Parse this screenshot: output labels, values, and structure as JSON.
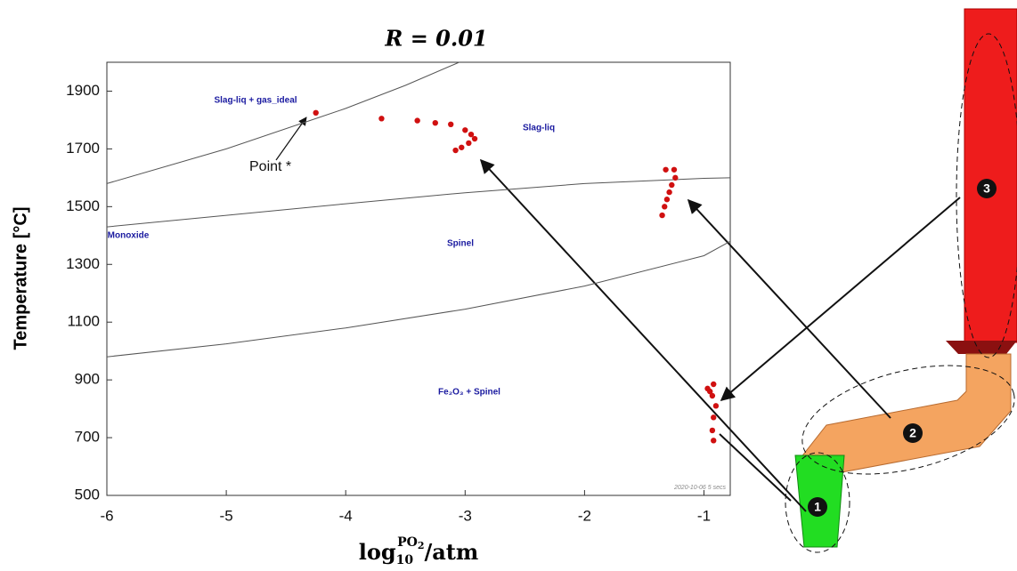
{
  "chart_data": {
    "type": "scatter",
    "title": "R = 0.01",
    "y_label": "Temperature [°C]",
    "x_label": {
      "base": "log",
      "sub": "10",
      "sup": "PO",
      "sup_sub": "2",
      "tail": "/atm"
    },
    "xlim": [
      -6,
      -0.78
    ],
    "ylim": [
      500,
      2000
    ],
    "xticks": [
      -6,
      -5,
      -4,
      -3,
      -2,
      -1
    ],
    "yticks": [
      500,
      700,
      900,
      1100,
      1300,
      1500,
      1700,
      1900
    ],
    "series": [
      {
        "color": "#d01010",
        "x": [
          -4.25,
          -3.7,
          -3.4,
          -3.25,
          -3.12,
          -3.0,
          -2.95,
          -2.92,
          -2.97,
          -3.03,
          -3.08,
          -1.32,
          -1.25,
          -1.24,
          -1.27,
          -1.29,
          -1.31,
          -1.33,
          -1.35,
          -0.97,
          -0.92,
          -0.95,
          -0.93,
          -0.9,
          -0.92,
          -0.93,
          -0.92
        ],
        "y": [
          1825,
          1805,
          1798,
          1790,
          1785,
          1765,
          1750,
          1735,
          1720,
          1705,
          1695,
          1628,
          1628,
          1600,
          1575,
          1550,
          1525,
          1500,
          1470,
          870,
          885,
          860,
          845,
          810,
          770,
          725,
          690
        ]
      }
    ],
    "boundaries": [
      {
        "x": [
          -6,
          -5,
          -4,
          -3.5,
          -3.05
        ],
        "y": [
          1580,
          1700,
          1840,
          1920,
          2000
        ]
      },
      {
        "x": [
          -6,
          -5,
          -4,
          -3,
          -2,
          -1,
          -0.78
        ],
        "y": [
          1430,
          1470,
          1510,
          1548,
          1580,
          1598,
          1600
        ]
      },
      {
        "x": [
          -6,
          -5,
          -4,
          -3,
          -2,
          -1,
          -0.78
        ],
        "y": [
          980,
          1025,
          1080,
          1145,
          1225,
          1330,
          1380
        ]
      }
    ],
    "regions": [
      "Slag-liq + gas_ideal",
      "Slag-liq",
      "Spinel",
      "Monoxide",
      "Fe₂O₃ + Spinel"
    ],
    "annotation": "Point *",
    "stamp": "2020-10-06  5 secs",
    "zones": [
      "1",
      "2",
      "3"
    ]
  }
}
